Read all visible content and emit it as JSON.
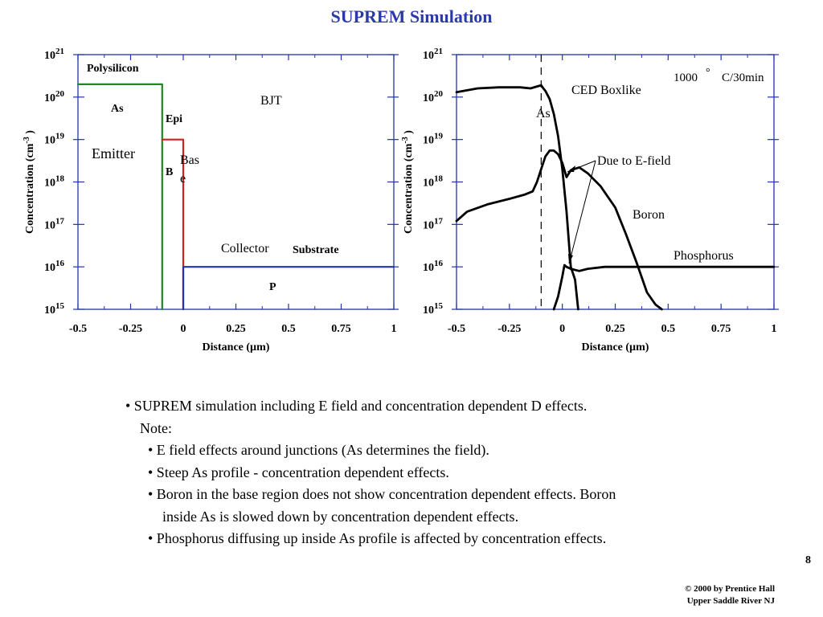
{
  "slide": {
    "title": "SUPREM Simulation",
    "page_number": "8",
    "copyright_line1": "© 2000 by Prentice Hall",
    "copyright_line2": "Upper Saddle River NJ",
    "notes": [
      "• SUPREM simulation including E field and concentration dependent D effects.",
      "Note:",
      "• E field effects around junctions (As determines the field).",
      "• Steep As profile - concentration dependent effects.",
      "• Boron in the base region does not show concentration dependent effects. Boron",
      "inside As is slowed down by concentration dependent effects.",
      "• Phosphorus diffusing up inside As profile is affected by concentration effects."
    ]
  },
  "chart_data": [
    {
      "type": "line",
      "xlabel": "Distance (µm)",
      "ylabel": "Concentration (cm-3 )",
      "xlim": [
        -0.5,
        1
      ],
      "ylim_log10": [
        15,
        21
      ],
      "y_scale": "log",
      "x_ticks": [
        "-0.5",
        "-0.25",
        "0",
        "0.25",
        "0.5",
        "0.75",
        "1"
      ],
      "y_ticks": [
        "1015",
        "1016",
        "1017",
        "1018",
        "1019",
        "1020",
        "1021"
      ],
      "series": [
        {
          "name": "As",
          "color": "#1a8a1a",
          "x": [
            -0.5,
            -0.1,
            -0.1
          ],
          "y": [
            2e+20,
            2e+20,
            1000000000000000.0
          ]
        },
        {
          "name": "B",
          "color": "#d02020",
          "x": [
            -0.1,
            0.0,
            0.0
          ],
          "y": [
            1e+19,
            1e+19,
            1000000000000000.0
          ]
        },
        {
          "name": "P",
          "color": "#2233aa",
          "x": [
            0.0,
            0.0,
            1.0
          ],
          "y": [
            1000000000000000.0,
            1e+16,
            1e+16
          ]
        }
      ],
      "annotations": {
        "polysilicon": "Polysilicon",
        "as": "As",
        "epi": "Epi",
        "emitter": "Emitter",
        "b": "B",
        "base": "Bas\ne",
        "bjt": "BJT",
        "collector": "Collector",
        "substrate": "Substrate",
        "p": "P"
      }
    },
    {
      "type": "line",
      "xlabel": "Distance (µm)",
      "ylabel": "Concentration (cm-3 )",
      "xlim": [
        -0.5,
        1
      ],
      "ylim_log10": [
        15,
        21
      ],
      "y_scale": "log",
      "x_ticks": [
        "-0.5",
        "-0.25",
        "0",
        "0.25",
        "0.5",
        "0.75",
        "1"
      ],
      "y_ticks": [
        "1015",
        "1016",
        "1017",
        "1018",
        "1019",
        "1020",
        "1021"
      ],
      "series": [
        {
          "name": "As",
          "color": "#000000",
          "x": [
            -0.5,
            -0.4,
            -0.3,
            -0.2,
            -0.15,
            -0.1,
            -0.09,
            -0.08,
            -0.06,
            -0.04,
            -0.02,
            0.0,
            0.02,
            0.04,
            0.06,
            0.075
          ],
          "y": [
            1.3e+20,
            1.6e+20,
            1.7e+20,
            1.7e+20,
            1.6e+20,
            1.9e+20,
            1.6e+20,
            1.4e+20,
            9e+19,
            4e+19,
            1.2e+19,
            2e+18,
            2e+17,
            1e+16,
            5000000000000000.0,
            1000000000000000.0
          ]
        },
        {
          "name": "Boron",
          "color": "#000000",
          "x": [
            -0.5,
            -0.45,
            -0.35,
            -0.25,
            -0.18,
            -0.14,
            -0.12,
            -0.1,
            -0.08,
            -0.06,
            -0.04,
            -0.02,
            0.0,
            0.02,
            0.04,
            0.08,
            0.12,
            0.18,
            0.25,
            0.3,
            0.35,
            0.4,
            0.44,
            0.47
          ],
          "y": [
            1.2e+17,
            2e+17,
            3e+17,
            4e+17,
            5e+17,
            6e+17,
            1e+18,
            2e+18,
            4e+18,
            5.5e+18,
            5.5e+18,
            4.5e+18,
            2.8e+18,
            1.3e+18,
            1.9e+18,
            2.2e+18,
            1.6e+18,
            8e+17,
            2.5e+17,
            6e+16,
            1.3e+16,
            2500000000000000.0,
            1300000000000000.0,
            1000000000000000.0
          ]
        },
        {
          "name": "Phosphorus",
          "color": "#000000",
          "x": [
            -0.04,
            -0.02,
            0.0,
            0.01,
            0.02,
            0.04,
            0.08,
            0.12,
            0.2,
            0.3,
            0.5,
            0.75,
            1.0
          ],
          "y": [
            1000000000000000.0,
            2000000000000000.0,
            6000000000000000.0,
            1.1e+16,
            1e+16,
            9000000000000000.0,
            8000000000000000.0,
            9000000000000000.0,
            1e+16,
            1e+16,
            1e+16,
            1e+16,
            1e+16
          ]
        }
      ],
      "dashed_line_x": -0.1,
      "annotations": {
        "condition_temp": "1000",
        "degree": "°",
        "condition_rest": "C/30min",
        "ced": "CED Boxlike",
        "as": "As",
        "efield": "Due to E-field",
        "boron": "Boron",
        "phosphorus": "Phosphorus"
      }
    }
  ]
}
